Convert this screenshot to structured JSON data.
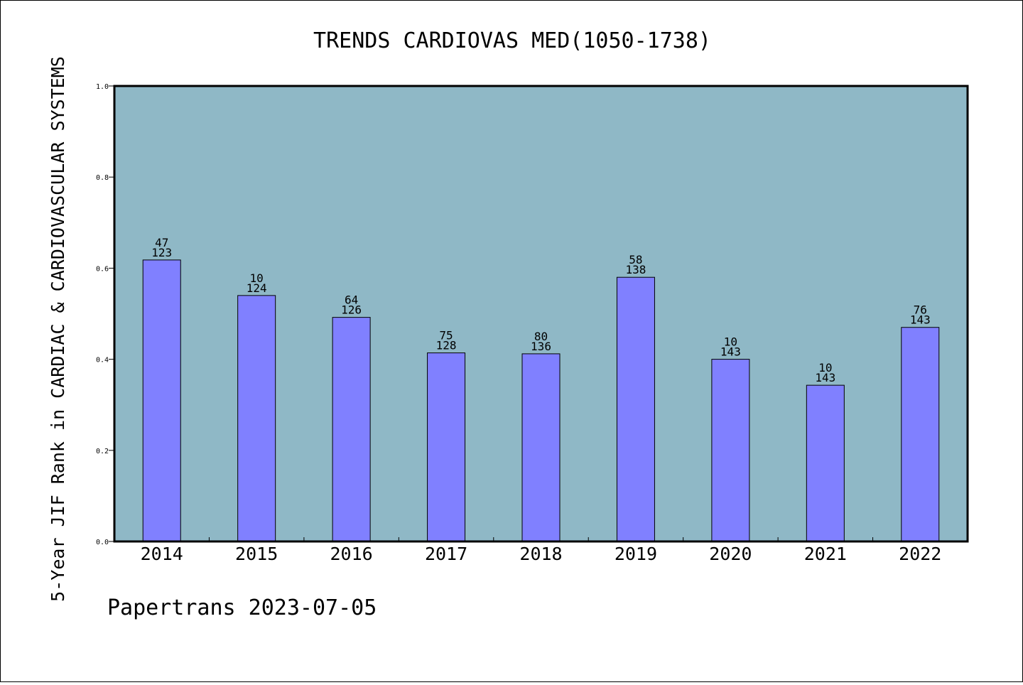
{
  "chart_data": {
    "type": "bar",
    "title": "TRENDS CARDIOVAS MED(1050-1738)",
    "ylabel": "5-Year JIF Rank in CARDIAC & CARDIOVASCULAR SYSTEMS",
    "xlabel": "",
    "ylim": [
      0,
      1.0
    ],
    "yticks": [
      "0.0",
      "0.2",
      "0.4",
      "0.6",
      "0.8",
      "1.0"
    ],
    "grid": false,
    "colors": {
      "plot_bg": "#8fb8c6",
      "bar": "#8080ff",
      "bar_edge": "#000000"
    },
    "categories": [
      "2014",
      "2015",
      "2016",
      "2017",
      "2018",
      "2019",
      "2020",
      "2021",
      "2022"
    ],
    "values": [
      0.618,
      0.54,
      0.492,
      0.414,
      0.412,
      0.58,
      0.4,
      0.343,
      0.47
    ],
    "rank": [
      "47",
      "10",
      "64",
      "75",
      "80",
      "58",
      "10",
      "10",
      "76"
    ],
    "total": [
      "123",
      "124",
      "126",
      "128",
      "136",
      "138",
      "143",
      "143",
      "143"
    ]
  },
  "footer": "Papertrans 2023-07-05"
}
